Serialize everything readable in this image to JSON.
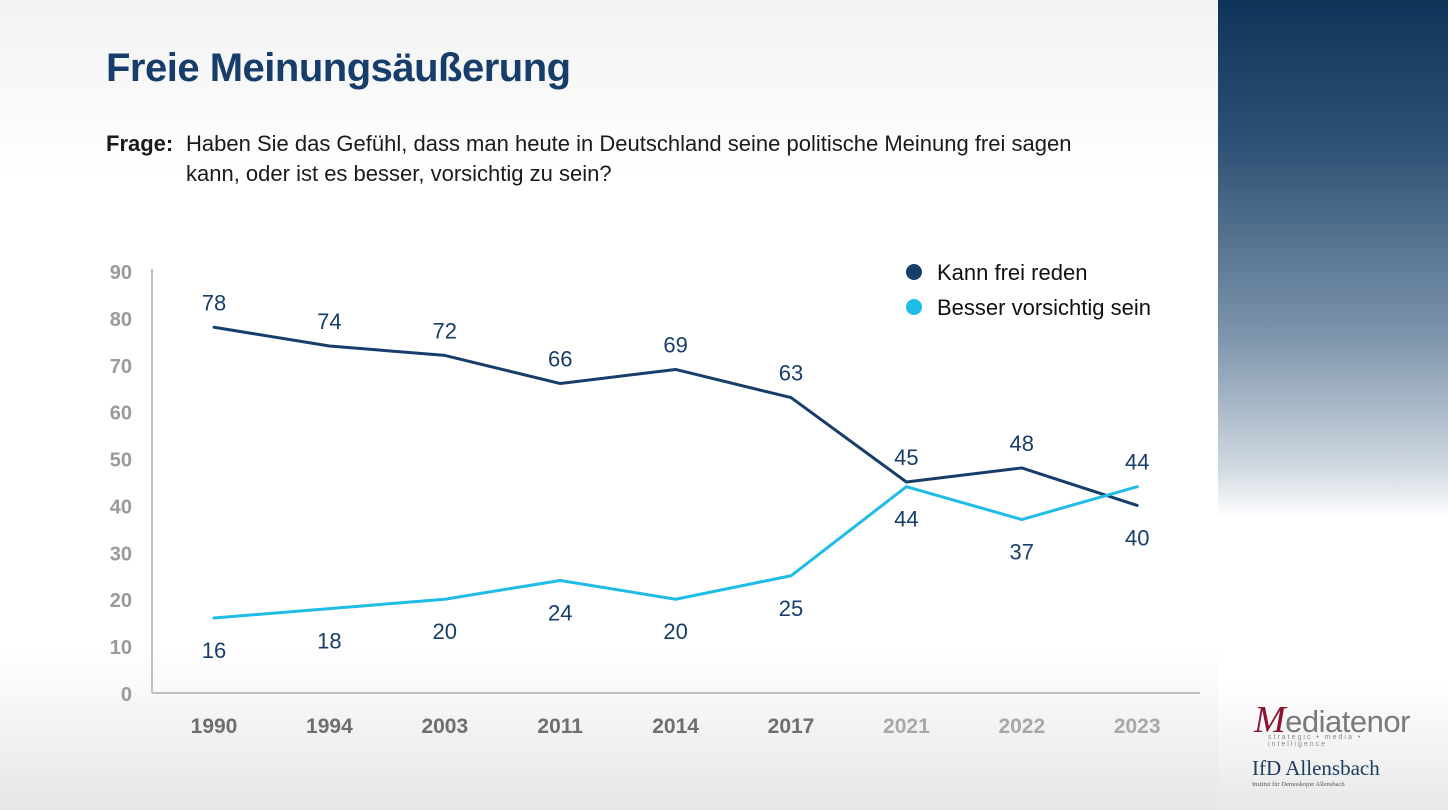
{
  "header": {
    "title": "Freie Meinungsäußerung",
    "question_label": "Frage:",
    "question_text": "Haben Sie das Gefühl, dass man heute in Deutschland seine politische Meinung frei sagen kann, oder ist es besser, vorsichtig zu sein?"
  },
  "chart_data": {
    "type": "line",
    "title": "",
    "xlabel": "",
    "ylabel": "",
    "x": [
      "1990",
      "1994",
      "2003",
      "2011",
      "2014",
      "2017",
      "2021",
      "2022",
      "2023"
    ],
    "ylim": [
      0,
      90
    ],
    "yticks": [
      0,
      10,
      20,
      30,
      40,
      50,
      60,
      70,
      80,
      90
    ],
    "grid": false,
    "legend_position": "top-right",
    "series": [
      {
        "name": "Kann frei reden",
        "color": "#173e6b",
        "values": [
          78,
          74,
          72,
          66,
          69,
          63,
          45,
          48,
          40
        ]
      },
      {
        "name": "Besser vorsichtig sein",
        "color": "#1fbce6",
        "values": [
          16,
          18,
          20,
          24,
          20,
          25,
          44,
          37,
          44
        ]
      }
    ]
  },
  "logos": {
    "mediatenor_initial": "M",
    "mediatenor_rest": "ediatenor",
    "mediatenor_tagline": "strategic • media • intelligence",
    "ifd_name": "IfD Allensbach",
    "ifd_subtitle": "Institut für Demoskopie Allensbach"
  },
  "colors": {
    "title": "#173e6b",
    "axis_text": "#7f7f7f",
    "axis_line": "#bfbfbf",
    "label_text": "#173e6b"
  }
}
